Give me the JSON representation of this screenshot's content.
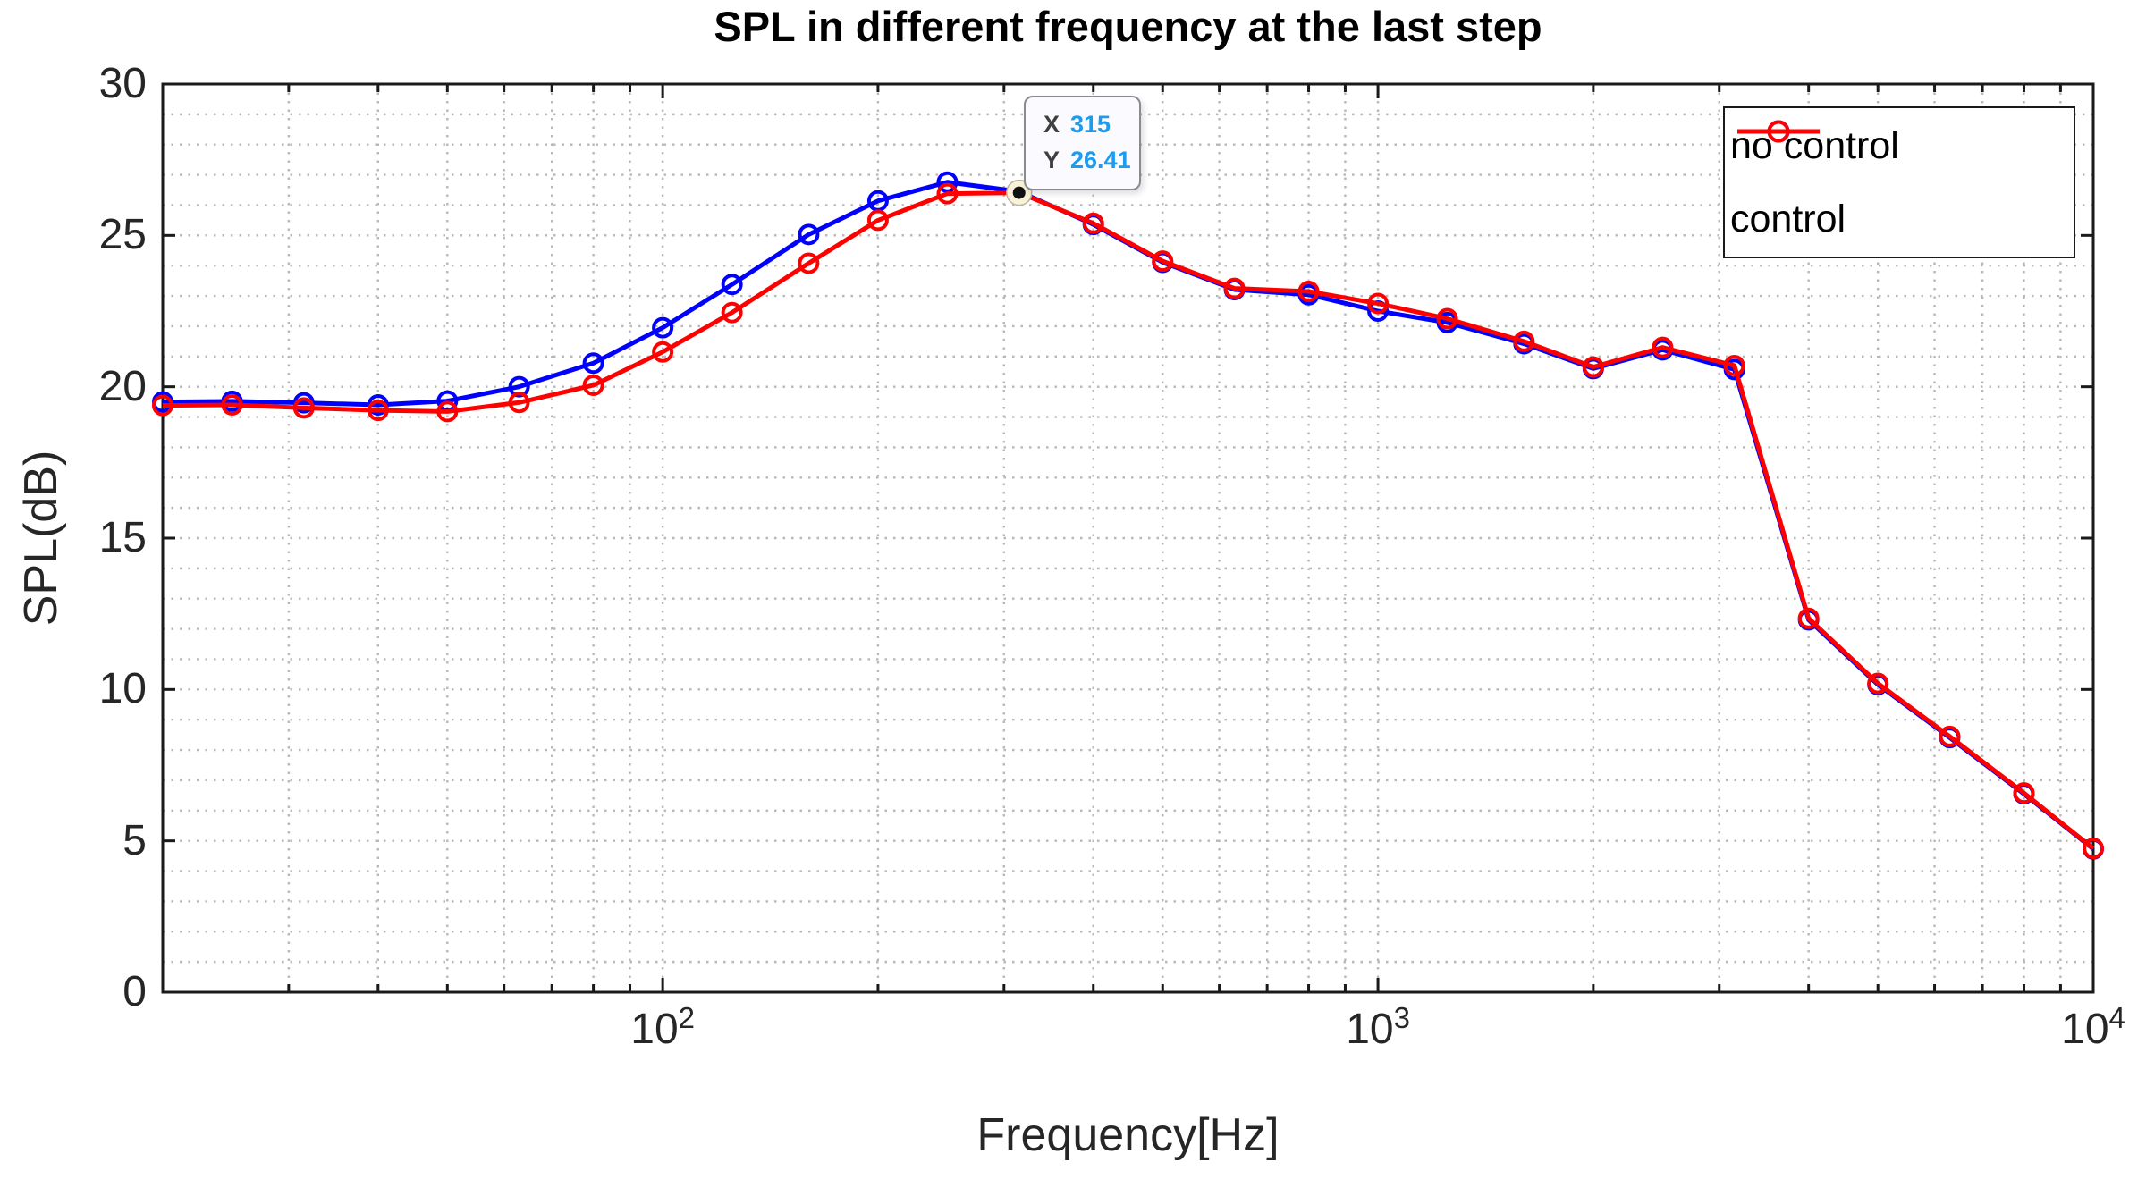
{
  "chart_data": {
    "type": "line",
    "title": "SPL in different frequency at the last step",
    "xlabel": "Frequency[Hz]",
    "ylabel": "SPL(dB)",
    "x_scale": "log",
    "xlim": [
      20,
      10000
    ],
    "ylim": [
      0,
      30
    ],
    "grid": "dotted",
    "grid_color": "#b8b8b8",
    "axis_color": "#1a1a1a",
    "y_major_ticks": [
      0,
      5,
      10,
      15,
      20,
      25,
      30
    ],
    "y_minor_grid_step": 1,
    "x_major_ticks": [
      {
        "value": 100,
        "base": "10",
        "exp": "2"
      },
      {
        "value": 1000,
        "base": "10",
        "exp": "3"
      },
      {
        "value": 10000,
        "base": "10",
        "exp": "4"
      }
    ],
    "x_minor_ticks": [
      30,
      40,
      50,
      60,
      70,
      80,
      90,
      200,
      300,
      400,
      500,
      600,
      700,
      800,
      900,
      2000,
      3000,
      4000,
      5000,
      6000,
      7000,
      8000,
      9000
    ],
    "frequencies_hz": [
      20,
      25,
      31.5,
      40,
      50,
      63,
      80,
      100,
      125,
      160,
      200,
      250,
      315,
      400,
      500,
      630,
      800,
      1000,
      1250,
      1600,
      2000,
      2500,
      3150,
      4000,
      5000,
      6300,
      8000,
      10000
    ],
    "series": [
      {
        "name": "no control",
        "color": "#0000ff",
        "marker": "circle",
        "values": [
          19.5,
          19.52,
          19.47,
          19.4,
          19.53,
          20.0,
          20.78,
          21.95,
          23.38,
          25.03,
          26.14,
          26.76,
          26.45,
          25.36,
          24.11,
          23.21,
          23.04,
          22.5,
          22.12,
          21.42,
          20.6,
          21.22,
          20.57,
          12.3,
          10.16,
          8.41,
          6.55,
          4.73
        ]
      },
      {
        "name": "control",
        "color": "#ff0000",
        "marker": "circle",
        "values": [
          19.38,
          19.4,
          19.3,
          19.22,
          19.18,
          19.48,
          20.05,
          21.15,
          22.45,
          24.08,
          25.5,
          26.38,
          26.41,
          25.4,
          24.15,
          23.25,
          23.15,
          22.75,
          22.25,
          21.5,
          20.65,
          21.3,
          20.7,
          12.35,
          10.2,
          8.45,
          6.58,
          4.75
        ]
      }
    ],
    "legend_position": "top-right"
  },
  "datatip": {
    "x_label": "X",
    "x_value": "315",
    "y_label": "Y",
    "y_value": "26.41",
    "anchor_freq": 315,
    "anchor_value": 26.41,
    "value_color": "#1c9cf0",
    "label_color": "#3f3f3f"
  }
}
